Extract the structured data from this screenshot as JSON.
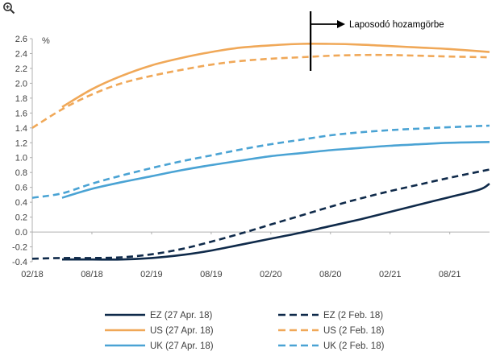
{
  "colors": {
    "EZ": "#0f2a4a",
    "US": "#f0a858",
    "UK": "#4aa3d4",
    "axis": "#b0b0b0",
    "text": "#404040"
  },
  "icons": {
    "zoom": "zoom-in-icon"
  },
  "chart_data": {
    "type": "line",
    "ylabel": "%",
    "ylim": [
      -0.4,
      2.6
    ],
    "yticks": [
      "-0.4",
      "-0.2",
      "0.0",
      "0.2",
      "0.4",
      "0.6",
      "0.8",
      "1.0",
      "1.2",
      "1.4",
      "1.6",
      "1.8",
      "2.0",
      "2.2",
      "2.4",
      "2.6"
    ],
    "xlim": [
      "2018-02",
      "2021-12"
    ],
    "xticks": [
      {
        "date": "2018-02",
        "label": "02/18"
      },
      {
        "date": "2018-08",
        "label": "08/18"
      },
      {
        "date": "2019-02",
        "label": "02/19"
      },
      {
        "date": "2019-08",
        "label": "08/19"
      },
      {
        "date": "2020-02",
        "label": "02/20"
      },
      {
        "date": "2020-08",
        "label": "08/20"
      },
      {
        "date": "2021-02",
        "label": "02/21"
      },
      {
        "date": "2021-08",
        "label": "08/21"
      }
    ],
    "grid": false,
    "legend_position": "bottom",
    "annotation": {
      "text": "Laposodó hozamgörbe",
      "date": "2020-06"
    },
    "series": [
      {
        "name": "EZ (27 Apr. 18)",
        "key": "EZ",
        "style": "solid",
        "points": [
          [
            "2018-05",
            -0.37
          ],
          [
            "2018-08",
            -0.37
          ],
          [
            "2018-11",
            -0.37
          ],
          [
            "2019-02",
            -0.35
          ],
          [
            "2019-05",
            -0.31
          ],
          [
            "2019-08",
            -0.25
          ],
          [
            "2019-11",
            -0.17
          ],
          [
            "2020-02",
            -0.09
          ],
          [
            "2020-05",
            -0.01
          ],
          [
            "2020-08",
            0.08
          ],
          [
            "2020-11",
            0.17
          ],
          [
            "2021-02",
            0.27
          ],
          [
            "2021-05",
            0.37
          ],
          [
            "2021-08",
            0.47
          ],
          [
            "2021-11",
            0.57
          ],
          [
            "2021-12",
            0.65
          ]
        ]
      },
      {
        "name": "EZ (2 Feb. 18)",
        "key": "EZ",
        "style": "dashed",
        "points": [
          [
            "2018-02",
            -0.36
          ],
          [
            "2018-05",
            -0.35
          ],
          [
            "2018-08",
            -0.35
          ],
          [
            "2018-11",
            -0.34
          ],
          [
            "2019-02",
            -0.3
          ],
          [
            "2019-05",
            -0.23
          ],
          [
            "2019-08",
            -0.13
          ],
          [
            "2019-11",
            -0.02
          ],
          [
            "2020-02",
            0.1
          ],
          [
            "2020-05",
            0.22
          ],
          [
            "2020-08",
            0.34
          ],
          [
            "2020-11",
            0.45
          ],
          [
            "2021-02",
            0.55
          ],
          [
            "2021-05",
            0.64
          ],
          [
            "2021-08",
            0.73
          ],
          [
            "2021-12",
            0.84
          ]
        ]
      },
      {
        "name": "US (27 Apr. 18)",
        "key": "US",
        "style": "solid",
        "points": [
          [
            "2018-05",
            1.68
          ],
          [
            "2018-08",
            1.92
          ],
          [
            "2018-11",
            2.1
          ],
          [
            "2019-02",
            2.24
          ],
          [
            "2019-05",
            2.34
          ],
          [
            "2019-08",
            2.42
          ],
          [
            "2019-11",
            2.48
          ],
          [
            "2020-02",
            2.51
          ],
          [
            "2020-05",
            2.53
          ],
          [
            "2020-08",
            2.53
          ],
          [
            "2020-11",
            2.52
          ],
          [
            "2021-02",
            2.5
          ],
          [
            "2021-05",
            2.48
          ],
          [
            "2021-08",
            2.46
          ],
          [
            "2021-12",
            2.42
          ]
        ]
      },
      {
        "name": "US (2 Feb. 18)",
        "key": "US",
        "style": "dashed",
        "points": [
          [
            "2018-02",
            1.4
          ],
          [
            "2018-05",
            1.65
          ],
          [
            "2018-08",
            1.85
          ],
          [
            "2018-11",
            2.0
          ],
          [
            "2019-02",
            2.1
          ],
          [
            "2019-05",
            2.18
          ],
          [
            "2019-08",
            2.25
          ],
          [
            "2019-11",
            2.3
          ],
          [
            "2020-02",
            2.33
          ],
          [
            "2020-05",
            2.35
          ],
          [
            "2020-08",
            2.37
          ],
          [
            "2020-11",
            2.38
          ],
          [
            "2021-02",
            2.38
          ],
          [
            "2021-05",
            2.37
          ],
          [
            "2021-08",
            2.36
          ],
          [
            "2021-12",
            2.35
          ]
        ]
      },
      {
        "name": "UK (27 Apr. 18)",
        "key": "UK",
        "style": "solid",
        "points": [
          [
            "2018-05",
            0.46
          ],
          [
            "2018-08",
            0.58
          ],
          [
            "2018-11",
            0.67
          ],
          [
            "2019-02",
            0.75
          ],
          [
            "2019-05",
            0.83
          ],
          [
            "2019-08",
            0.9
          ],
          [
            "2019-11",
            0.96
          ],
          [
            "2020-02",
            1.02
          ],
          [
            "2020-05",
            1.06
          ],
          [
            "2020-08",
            1.1
          ],
          [
            "2020-11",
            1.13
          ],
          [
            "2021-02",
            1.16
          ],
          [
            "2021-05",
            1.18
          ],
          [
            "2021-08",
            1.2
          ],
          [
            "2021-12",
            1.21
          ]
        ]
      },
      {
        "name": "UK (2 Feb. 18)",
        "key": "UK",
        "style": "dashed",
        "points": [
          [
            "2018-02",
            0.46
          ],
          [
            "2018-05",
            0.52
          ],
          [
            "2018-08",
            0.65
          ],
          [
            "2018-11",
            0.76
          ],
          [
            "2019-02",
            0.86
          ],
          [
            "2019-05",
            0.95
          ],
          [
            "2019-08",
            1.03
          ],
          [
            "2019-11",
            1.11
          ],
          [
            "2020-02",
            1.18
          ],
          [
            "2020-05",
            1.24
          ],
          [
            "2020-08",
            1.3
          ],
          [
            "2020-11",
            1.34
          ],
          [
            "2021-02",
            1.37
          ],
          [
            "2021-05",
            1.39
          ],
          [
            "2021-08",
            1.41
          ],
          [
            "2021-12",
            1.43
          ]
        ]
      }
    ]
  }
}
